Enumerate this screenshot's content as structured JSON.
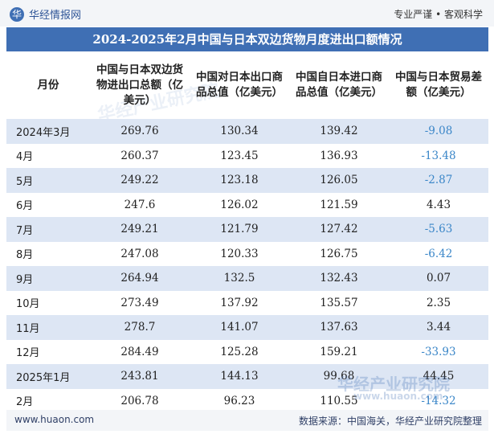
{
  "brand": {
    "logo_glyph": "华",
    "name": "华经情报网",
    "tagline": "专业严谨 • 客观科学"
  },
  "title": "2024-2025年2月中国与日本双边货物月度进出口额情况",
  "columns": [
    "月份",
    "中国与日本双边货物进出口总额（亿美元）",
    "中国对日本出口商品总值（亿美元）",
    "中国自日本进口商品总值（亿美元）",
    "中国与日本贸易差额（亿美元）"
  ],
  "rows": [
    {
      "month": "2024年3月",
      "total": "269.76",
      "export": "130.34",
      "import": "139.42",
      "balance": "-9.08"
    },
    {
      "month": "4月",
      "total": "260.37",
      "export": "123.45",
      "import": "136.93",
      "balance": "-13.48"
    },
    {
      "month": "5月",
      "total": "249.22",
      "export": "123.18",
      "import": "126.05",
      "balance": "-2.87"
    },
    {
      "month": "6月",
      "total": "247.6",
      "export": "126.02",
      "import": "121.59",
      "balance": "4.43"
    },
    {
      "month": "7月",
      "total": "249.21",
      "export": "121.79",
      "import": "127.42",
      "balance": "-5.63"
    },
    {
      "month": "8月",
      "total": "247.08",
      "export": "120.33",
      "import": "126.75",
      "balance": "-6.42"
    },
    {
      "month": "9月",
      "total": "264.94",
      "export": "132.5",
      "import": "132.43",
      "balance": "0.07"
    },
    {
      "month": "10月",
      "total": "273.49",
      "export": "137.92",
      "import": "135.57",
      "balance": "2.35"
    },
    {
      "month": "11月",
      "total": "278.7",
      "export": "141.07",
      "import": "137.63",
      "balance": "3.44"
    },
    {
      "month": "12月",
      "total": "284.49",
      "export": "125.28",
      "import": "159.21",
      "balance": "-33.93"
    },
    {
      "month": "2025年1月",
      "total": "243.81",
      "export": "144.13",
      "import": "99.68",
      "balance": "44.45"
    },
    {
      "month": "2月",
      "total": "206.78",
      "export": "96.23",
      "import": "110.55",
      "balance": "-14.32"
    }
  ],
  "watermarks": [
    "华经产业研究院",
    "华经产业研究院",
    "华经产业研究院",
    "www.huaon.com"
  ],
  "footer": {
    "url": "www.huaon.com",
    "source": "数据来源：中国海关，华经产业研究院整理"
  },
  "colors": {
    "header_bg": "#3f6fb4",
    "row_stripe": "#dde6f4",
    "negative_text": "#3a86c8"
  }
}
